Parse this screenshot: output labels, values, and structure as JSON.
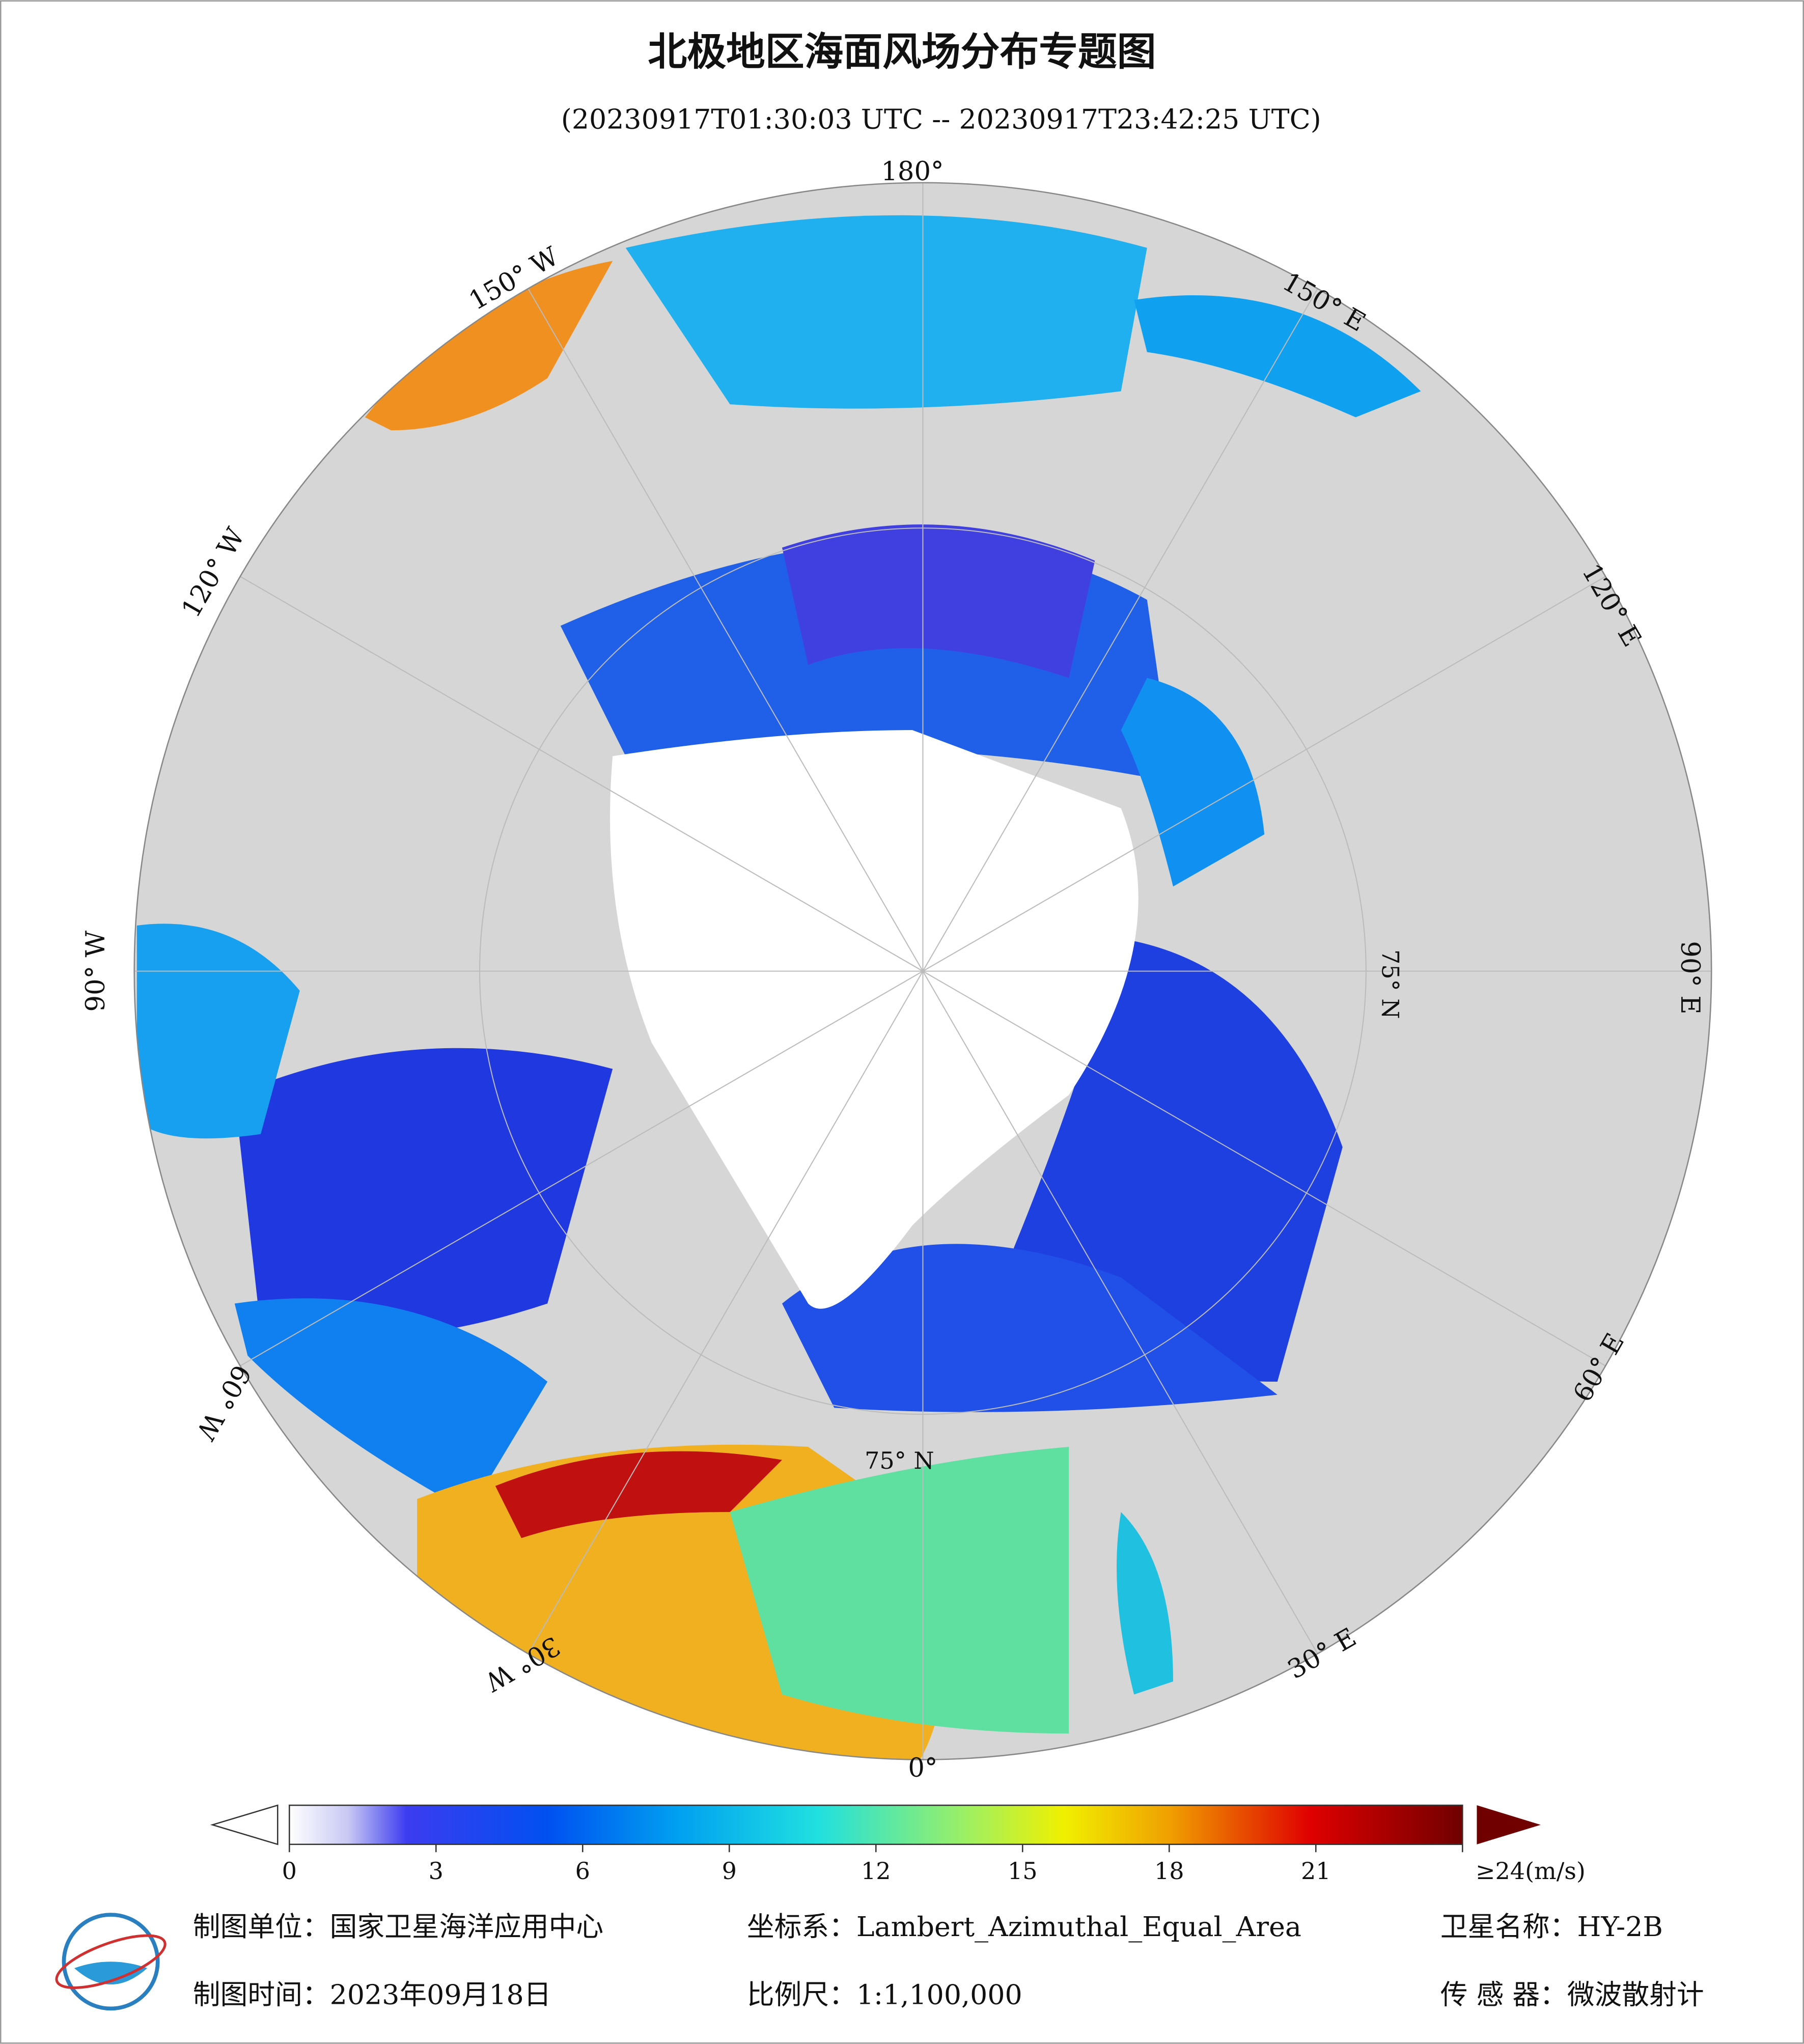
{
  "header": {
    "title": "北极地区海面风场分布专题图",
    "subtitle": "(20230917T01:30:03 UTC -- 20230917T23:42:25 UTC)"
  },
  "map": {
    "lon_labels": [
      "180°",
      "150° E",
      "120° E",
      "90° E",
      "60° E",
      "30° E",
      "0°",
      "30° W",
      "60° W",
      "90° W",
      "120° W",
      "150° W"
    ],
    "lat_labels": [
      "75° N",
      "75° N"
    ]
  },
  "colorbar": {
    "lim": [
      0,
      24
    ],
    "ticks": [
      0,
      3,
      6,
      9,
      12,
      15,
      18,
      21,
      {
        "value": 24,
        "label": "≥24(m/s)"
      }
    ]
  },
  "footer": {
    "rows": [
      [
        "制图单位：国家卫星海洋应用中心",
        "坐标系：Lambert_Azimuthal_Equal_Area",
        "卫星名称：HY-2B"
      ],
      [
        "制图时间：2023年09月18日",
        "比例尺：1:1,100,000",
        "传 感 器：微波散射计"
      ]
    ]
  }
}
